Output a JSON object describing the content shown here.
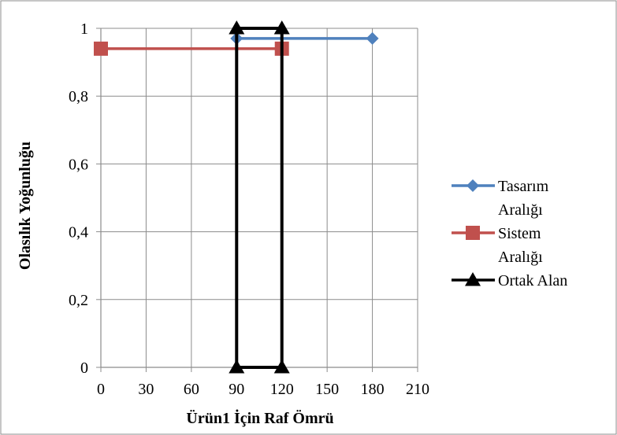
{
  "chart_data": {
    "type": "line",
    "xlabel": "Ürün1 İçin Raf Ömrü",
    "ylabel": "Olasılık Yoğunluğu",
    "x_ticks": [
      "0",
      "30",
      "60",
      "90",
      "120",
      "150",
      "180",
      "210"
    ],
    "y_ticks": [
      "0",
      "0,2",
      "0,4",
      "0,6",
      "0,8",
      "1"
    ],
    "xlim": [
      0,
      210
    ],
    "ylim": [
      0,
      1
    ],
    "x_step": 30,
    "y_step": 0.2,
    "grid": true,
    "legend_position": "right",
    "series": [
      {
        "name": "Tasarım Aralığı",
        "name_lines": [
          "Tasarım",
          "Aralığı"
        ],
        "color": "#4F81BD",
        "marker": "diamond",
        "points": [
          [
            90,
            0.97
          ],
          [
            180,
            0.97
          ]
        ]
      },
      {
        "name": "Sistem Aralığı",
        "name_lines": [
          "Sistem",
          "Aralığı"
        ],
        "color": "#C0504D",
        "marker": "square",
        "points": [
          [
            0,
            0.94
          ],
          [
            120,
            0.94
          ]
        ]
      },
      {
        "name": "Ortak Alan",
        "name_lines": [
          "Ortak Alan"
        ],
        "color": "#000000",
        "marker": "triangle",
        "points": [
          [
            90,
            0
          ],
          [
            90,
            1
          ],
          [
            120,
            1
          ],
          [
            120,
            0
          ],
          [
            90,
            0
          ]
        ]
      }
    ]
  }
}
